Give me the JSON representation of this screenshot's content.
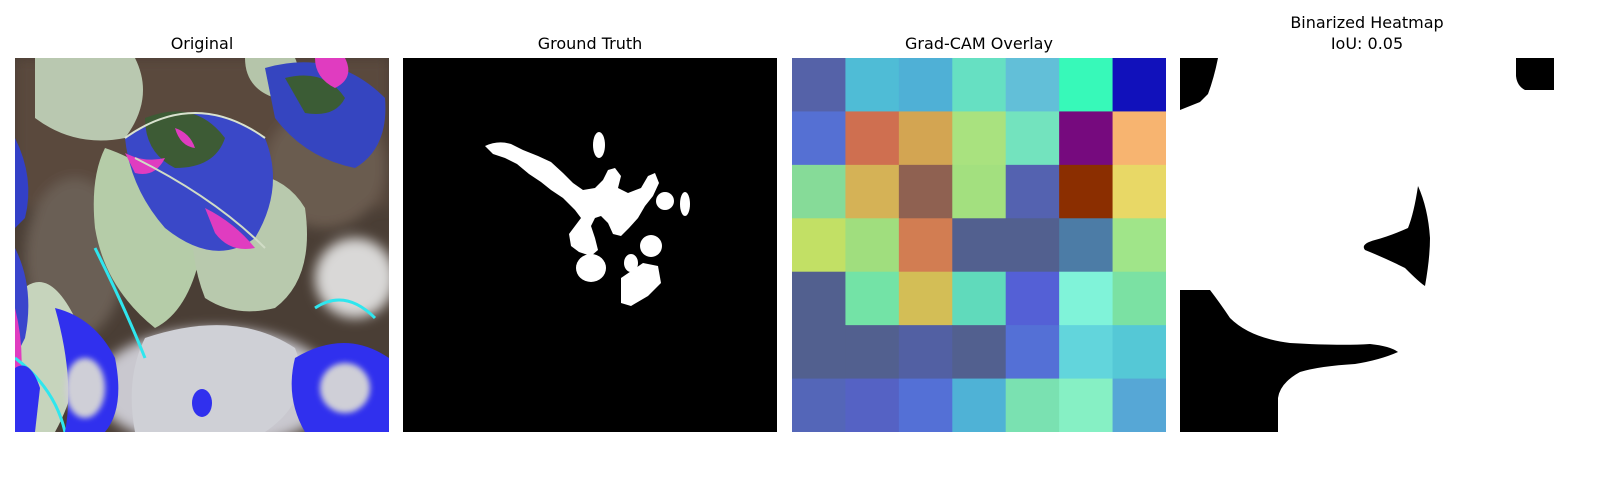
{
  "panels": {
    "original": {
      "title": "Original"
    },
    "ground_truth": {
      "title": "Ground Truth"
    },
    "gradcam": {
      "title": "Grad-CAM Overlay",
      "grid": [
        [
          "#5562a8",
          "#4fbcd6",
          "#4fb0d6",
          "#66e0c2",
          "#62bfd8",
          "#37f9b9",
          "#1111bb"
        ],
        [
          "#5570d3",
          "#cf6f50",
          "#d3a552",
          "#a9e27f",
          "#73e3be",
          "#760a7e",
          "#f7b470"
        ],
        [
          "#86db98",
          "#d5b256",
          "#8f6151",
          "#a3e07f",
          "#5462b0",
          "#8b2e00",
          "#e8d866"
        ],
        [
          "#c2e065",
          "#a0de7e",
          "#d27d52",
          "#52608f",
          "#52608f",
          "#4c7ca6",
          "#a0e589"
        ],
        [
          "#52608f",
          "#73e3a6",
          "#d3be56",
          "#60dabb",
          "#5460d6",
          "#80f3d9",
          "#7be1a3"
        ],
        [
          "#52608f",
          "#52608f",
          "#5260a3",
          "#52608f",
          "#5470d6",
          "#62d5dc",
          "#55c8d6"
        ],
        [
          "#5466b8",
          "#5562c4",
          "#5470d6",
          "#4fb2d6",
          "#7ae1b1",
          "#86f0c4",
          "#56a7d6"
        ]
      ]
    },
    "binarized": {
      "title": "Binarized Heatmap",
      "subtitle": "IoU: 0.05"
    }
  }
}
